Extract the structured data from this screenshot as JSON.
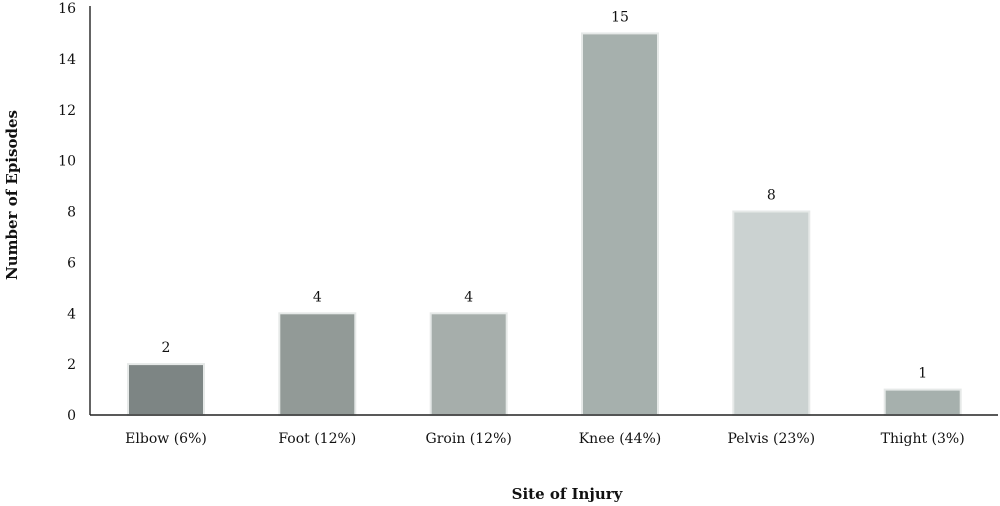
{
  "chart_data": {
    "type": "bar",
    "title": "",
    "xlabel": "Site of Injury",
    "ylabel": "Number of Episodes",
    "categories": [
      "Elbow (6%)",
      "Foot (12%)",
      "Groin (12%)",
      "Knee (44%)",
      "Pelvis (23%)",
      "Thight (3%)"
    ],
    "values": [
      2,
      4,
      4,
      15,
      8,
      1
    ],
    "data_labels": [
      "2",
      "4",
      "4",
      "15",
      "8",
      "1"
    ],
    "bar_colors": [
      "#7d8584",
      "#929a97",
      "#a6aeab",
      "#a6b0ad",
      "#cbd2d1",
      "#a6b0ad"
    ],
    "ylim": [
      0,
      16
    ],
    "yticks": [
      0,
      2,
      4,
      6,
      8,
      10,
      12,
      14,
      16
    ],
    "ytick_labels": [
      "0",
      "2",
      "4",
      "6",
      "8",
      "10",
      "12",
      "14",
      "16"
    ],
    "grid": false,
    "legend": "none"
  }
}
